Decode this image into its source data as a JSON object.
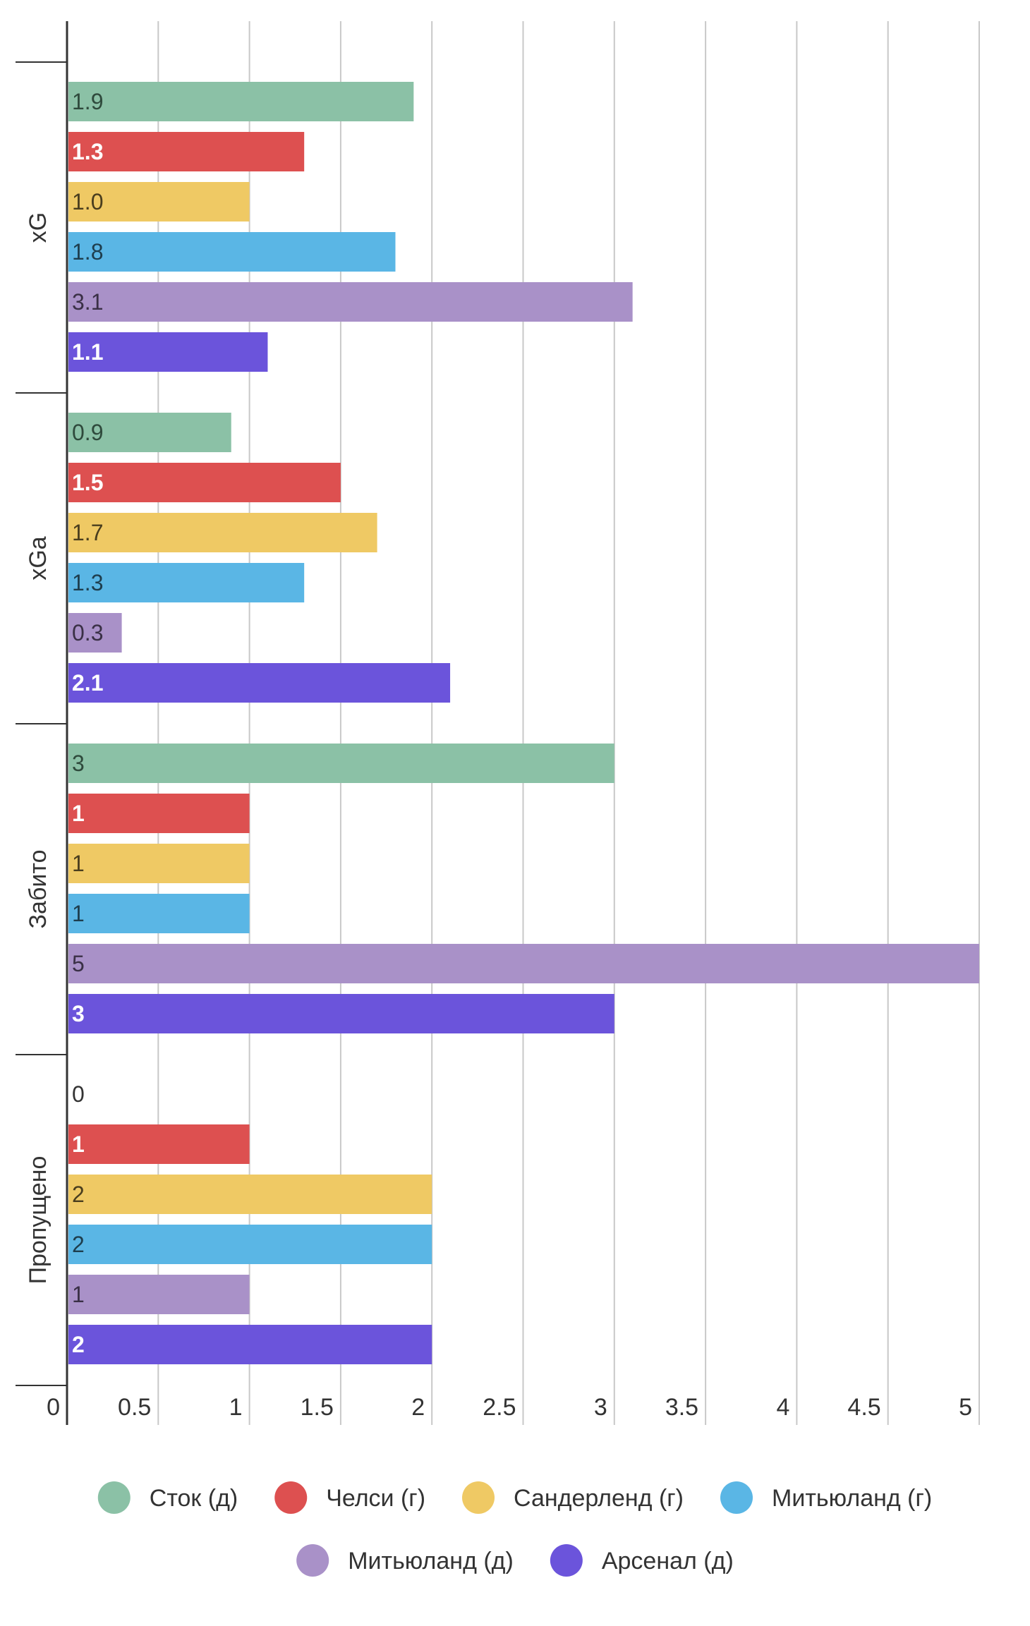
{
  "chart_data": {
    "type": "bar",
    "orientation": "horizontal",
    "categories": [
      "xG",
      "xGa",
      "Забито",
      "Пропущено"
    ],
    "series": [
      {
        "name": "Сток (д)",
        "color": "#8bc1a6",
        "label_color": "#2f4a3c",
        "values": [
          1.9,
          0.9,
          3,
          0
        ],
        "labels": [
          "1.9",
          "0.9",
          "3",
          "0"
        ]
      },
      {
        "name": "Челси (г)",
        "color": "#dd5050",
        "label_color": "#ffffff",
        "values": [
          1.3,
          1.5,
          1,
          1
        ],
        "labels": [
          "1.3",
          "1.5",
          "1",
          "1"
        ]
      },
      {
        "name": "Сандерленд (г)",
        "color": "#efc964",
        "label_color": "#4a3e1e",
        "values": [
          1.0,
          1.7,
          1,
          2
        ],
        "labels": [
          "1.0",
          "1.7",
          "1",
          "2"
        ]
      },
      {
        "name": "Митьюланд (г)",
        "color": "#5ab6e5",
        "label_color": "#1e3e4e",
        "values": [
          1.8,
          1.3,
          1,
          2
        ],
        "labels": [
          "1.8",
          "1.3",
          "1",
          "2"
        ]
      },
      {
        "name": "Митьюланд (д)",
        "color": "#a991c8",
        "label_color": "#3a3046",
        "values": [
          3.1,
          0.3,
          5,
          1
        ],
        "labels": [
          "3.1",
          "0.3",
          "5",
          "1"
        ]
      },
      {
        "name": "Арсенал (д)",
        "color": "#6b54db",
        "label_color": "#ffffff",
        "values": [
          1.1,
          2.1,
          3,
          2
        ],
        "labels": [
          "1.1",
          "2.1",
          "3",
          "2"
        ]
      }
    ],
    "xlim": [
      0,
      5
    ],
    "x_ticks": [
      "0",
      "0.5",
      "1",
      "1.5",
      "2",
      "2.5",
      "3",
      "3.5",
      "4",
      "4.5",
      "5"
    ],
    "grid": true,
    "legend_position": "bottom"
  }
}
